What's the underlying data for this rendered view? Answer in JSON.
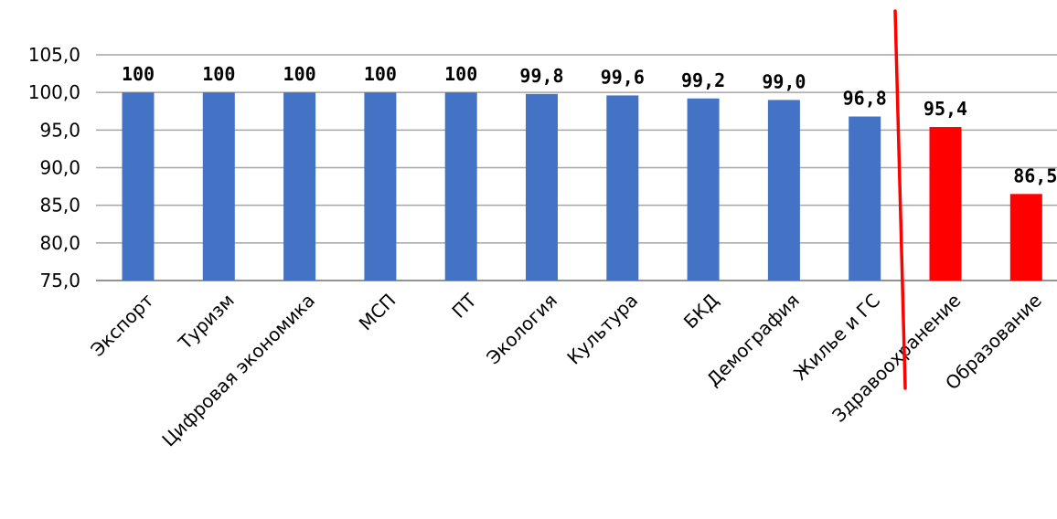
{
  "chart_data": {
    "type": "bar",
    "title": "",
    "xlabel": "",
    "ylabel": "",
    "categories": [
      "Экспорт",
      "Туризм",
      "Цифровая экономика",
      "МСП",
      "ПТ",
      "Экология",
      "Культура",
      "БКД",
      "Демография",
      "Жилье и ГС",
      "Здравоохранение",
      "Образование"
    ],
    "values": [
      100,
      100,
      100,
      100,
      100,
      99.8,
      99.6,
      99.2,
      99.0,
      96.8,
      95.4,
      86.5
    ],
    "data_labels": [
      "100",
      "100",
      "100",
      "100",
      "100",
      "99,8",
      "99,6",
      "99,2",
      "99,0",
      "96,8",
      "95,4",
      "86,5"
    ],
    "ylim": [
      75,
      105
    ],
    "yticks": [
      75,
      80,
      85,
      90,
      95,
      100,
      105
    ],
    "ytick_labels": [
      "75,0",
      "80,0",
      "85,0",
      "90,0",
      "95,0",
      "100,0",
      "105,0"
    ],
    "grid": true,
    "legend": "none",
    "colors": {
      "normal": "#4472C4",
      "highlight": "#FF0000",
      "divider": "#FF0000",
      "grid": "#A6A6A6"
    },
    "highlighted_categories": [
      "Здравоохранение",
      "Образование"
    ]
  }
}
